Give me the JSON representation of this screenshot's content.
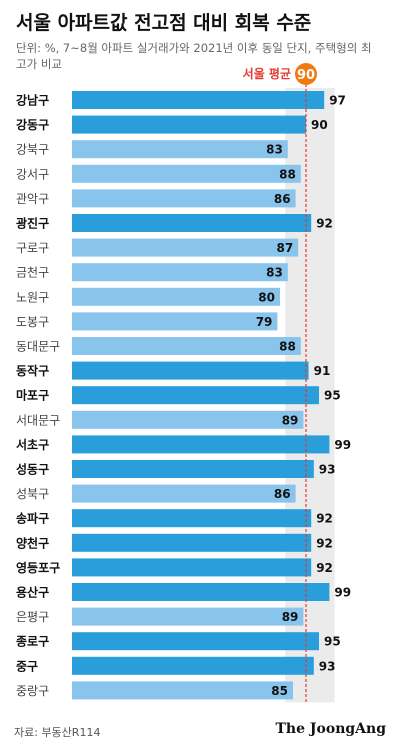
{
  "title": "서울 아파트값 전고점 대비 회복 수준",
  "subtitle": "단위: %, 7~8월 아파트 실거래가와 2021년 이후 동일 단지, 주택형의 최고가 비교",
  "source": "자료: 부동산R114",
  "publisher": "The JoongAng",
  "colors": {
    "highlight": "#2a9ddb",
    "normal": "#88c4ec",
    "reference": "#f07a10",
    "reference_line": "#e53935",
    "band": "#ebebeb"
  },
  "chart_data": {
    "type": "bar",
    "orientation": "horizontal",
    "unit": "%",
    "xlim": [
      0,
      100
    ],
    "categories": [
      "강남구",
      "강동구",
      "강북구",
      "강서구",
      "관악구",
      "광진구",
      "구로구",
      "금천구",
      "노원구",
      "도봉구",
      "동대문구",
      "동작구",
      "마포구",
      "서대문구",
      "서초구",
      "성동구",
      "성북구",
      "송파구",
      "양천구",
      "영등포구",
      "용산구",
      "은평구",
      "종로구",
      "중구",
      "중랑구"
    ],
    "values": [
      97,
      90,
      83,
      88,
      86,
      92,
      87,
      83,
      80,
      79,
      88,
      91,
      95,
      89,
      99,
      93,
      86,
      92,
      92,
      92,
      99,
      89,
      95,
      93,
      85
    ],
    "highlighted": [
      true,
      true,
      false,
      false,
      false,
      true,
      false,
      false,
      false,
      false,
      false,
      true,
      true,
      false,
      true,
      true,
      false,
      true,
      true,
      true,
      true,
      false,
      true,
      true,
      false
    ],
    "value_labels_inside": [
      false,
      false,
      true,
      true,
      true,
      false,
      true,
      true,
      true,
      true,
      true,
      false,
      false,
      true,
      false,
      false,
      true,
      false,
      false,
      false,
      false,
      true,
      false,
      false,
      true
    ],
    "reference": {
      "label": "서울 평균",
      "value": 90
    }
  }
}
